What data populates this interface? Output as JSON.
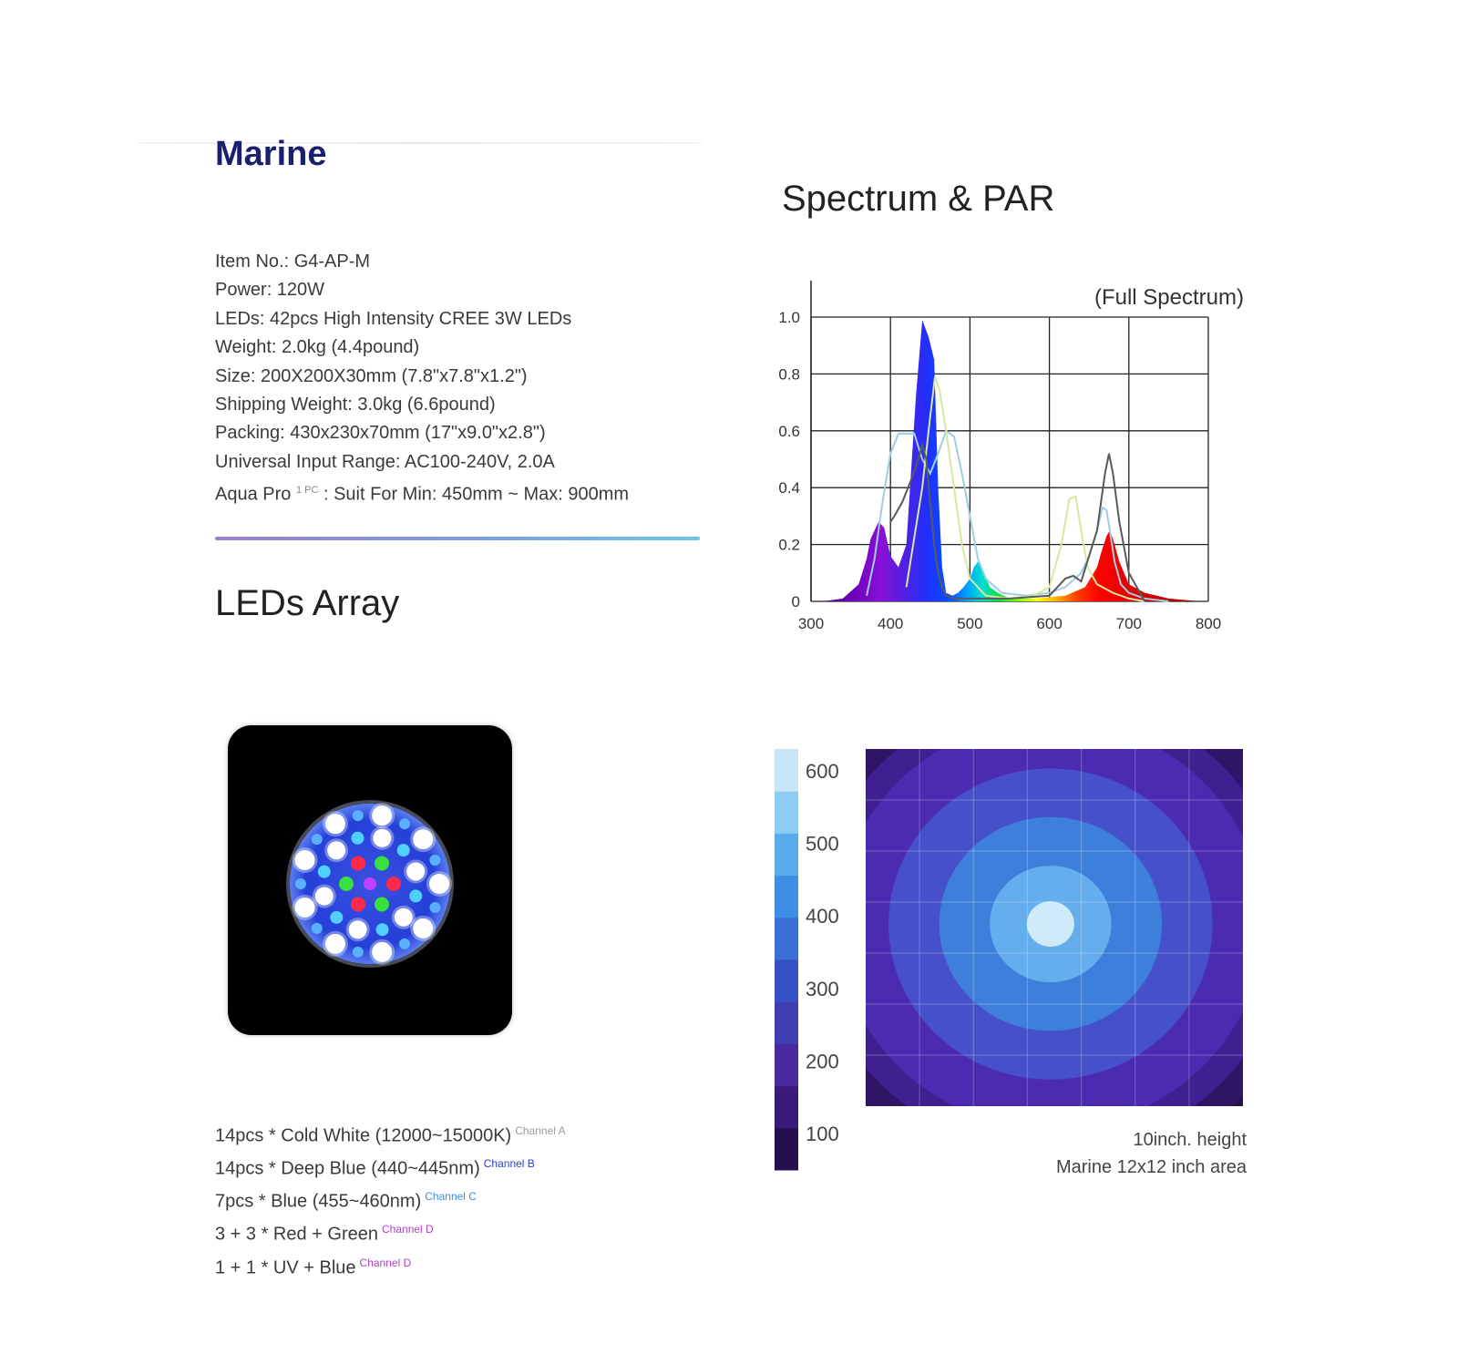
{
  "product": {
    "title": "Marine",
    "specs": [
      "Item No.: G4-AP-M",
      "Power: 120W",
      "LEDs: 42pcs High Intensity CREE 3W LEDs",
      "Weight: 2.0kg (4.4pound)",
      "Size: 200X200X30mm (7.8\"x7.8\"x1.2\")",
      "Shipping Weight: 3.0kg (6.6pound)",
      "Packing: 430x230x70mm (17\"x9.0\"x2.8\")",
      "Universal Input Range: AC100-240V, 2.0A"
    ],
    "suit_prefix": "Aqua Pro",
    "suit_sup": "1 PC",
    "suit_suffix": " : Suit For Min: 450mm ~ Max: 900mm"
  },
  "leds_array": {
    "title": "LEDs Array",
    "channels": [
      {
        "text": "14pcs * Cold White (12000~15000K)",
        "tag": "Channel A",
        "tag_color": "#9a9a9a"
      },
      {
        "text": "14pcs * Deep Blue (440~445nm)",
        "tag": "Channel B",
        "tag_color": "#2a3fd0"
      },
      {
        "text": "7pcs * Blue (455~460nm)",
        "tag": "Channel C",
        "tag_color": "#3d8fe0"
      },
      {
        "text": "3 + 3 * Red + Green",
        "tag": "Channel D",
        "tag_color": "#b040c8"
      },
      {
        "text": "1 + 1 * UV + Blue",
        "tag": "Channel D",
        "tag_color": "#b040c8"
      }
    ]
  },
  "spectrum_section": {
    "title": "Spectrum & PAR"
  },
  "chart_data": [
    {
      "type": "area",
      "title": "(Full Spectrum)",
      "x_ticks": [
        300,
        400,
        500,
        600,
        700,
        800
      ],
      "y_ticks": [
        "0",
        "0.2",
        "0.4",
        "0.6",
        "0.8",
        "1.0"
      ],
      "xlim": [
        300,
        800
      ],
      "ylim": [
        0,
        1.0
      ],
      "grid": true,
      "series": [
        {
          "color": "spectral-fill",
          "x": [
            300,
            320,
            340,
            360,
            370,
            375,
            385,
            392,
            400,
            410,
            420,
            432,
            440,
            444,
            448,
            455,
            460,
            465,
            470,
            478,
            485,
            492,
            500,
            505,
            510,
            518,
            525,
            535,
            550,
            580,
            620,
            645,
            660,
            665,
            672,
            676,
            680,
            688,
            700,
            720,
            750,
            790
          ],
          "y": [
            0,
            0.002,
            0.01,
            0.06,
            0.15,
            0.22,
            0.28,
            0.26,
            0.16,
            0.12,
            0.2,
            0.72,
            0.99,
            0.96,
            0.93,
            0.85,
            0.4,
            0.12,
            0.03,
            0.02,
            0.03,
            0.05,
            0.08,
            0.12,
            0.14,
            0.1,
            0.05,
            0.03,
            0.01,
            0.01,
            0.02,
            0.05,
            0.12,
            0.17,
            0.23,
            0.25,
            0.22,
            0.14,
            0.06,
            0.03,
            0.01,
            0
          ]
        },
        {
          "color": "#9ccfe3",
          "x": [
            370,
            380,
            390,
            400,
            410,
            420,
            430,
            440,
            450,
            460,
            470,
            480,
            490,
            500,
            510,
            520,
            540,
            570,
            600,
            620,
            640,
            650,
            660,
            667,
            672,
            676,
            682,
            690,
            700,
            720,
            750
          ],
          "y": [
            0.02,
            0.15,
            0.35,
            0.52,
            0.59,
            0.59,
            0.59,
            0.5,
            0.45,
            0.52,
            0.6,
            0.58,
            0.45,
            0.3,
            0.15,
            0.08,
            0.03,
            0.02,
            0.03,
            0.05,
            0.1,
            0.16,
            0.25,
            0.33,
            0.32,
            0.25,
            0.14,
            0.06,
            0.03,
            0.01,
            0
          ]
        },
        {
          "color": "#d8e6a0",
          "x": [
            420,
            440,
            450,
            456,
            462,
            470,
            480,
            490,
            500,
            520,
            550,
            580,
            600,
            615,
            625,
            633,
            640,
            648,
            660,
            680,
            700,
            720
          ],
          "y": [
            0.05,
            0.4,
            0.65,
            0.79,
            0.74,
            0.6,
            0.4,
            0.2,
            0.08,
            0.02,
            0.01,
            0.02,
            0.05,
            0.2,
            0.36,
            0.37,
            0.25,
            0.12,
            0.06,
            0.03,
            0.01,
            0
          ]
        },
        {
          "color": "#5a5a5a",
          "x": [
            400,
            405,
            415,
            425,
            435,
            440,
            445,
            450,
            455,
            460,
            465,
            470,
            480,
            500,
            550,
            600,
            620,
            630,
            640,
            660,
            670,
            675,
            680,
            688,
            700,
            720
          ],
          "y": [
            0.28,
            0.3,
            0.35,
            0.42,
            0.5,
            0.55,
            0.5,
            0.35,
            0.2,
            0.1,
            0.05,
            0.02,
            0.01,
            0.01,
            0.01,
            0.02,
            0.08,
            0.09,
            0.07,
            0.25,
            0.45,
            0.52,
            0.45,
            0.28,
            0.1,
            0
          ]
        }
      ]
    },
    {
      "type": "heatmap",
      "colorbar_ticks": [
        100,
        200,
        300,
        400,
        500,
        600
      ],
      "colorbar_colors": [
        "#25104f",
        "#3a1a78",
        "#4a2a9e",
        "#3f3db0",
        "#3550c4",
        "#3a6fd6",
        "#3e8ee4",
        "#5aabec",
        "#8ccbf3",
        "#c8e6f8"
      ],
      "contour_levels": [
        100,
        150,
        200,
        300,
        400,
        500,
        600
      ],
      "contour_colors": [
        "#2e1566",
        "#3e2090",
        "#4b2cb0",
        "#4650c8",
        "#3e7fdb",
        "#64aeee",
        "#cfeaf9"
      ],
      "caption_lines": [
        "10inch. height",
        "Marine 12x12 inch area"
      ]
    }
  ]
}
